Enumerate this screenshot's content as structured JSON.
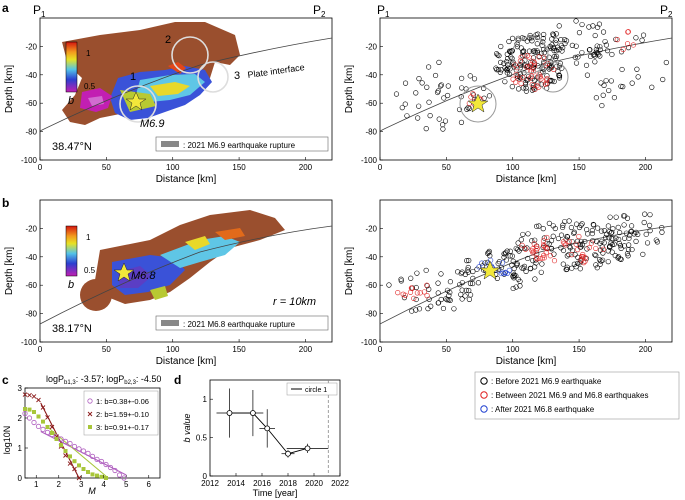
{
  "figure": {
    "panel_a_label": "a",
    "panel_b_label": "b",
    "panel_c_label": "c",
    "panel_d_label": "d",
    "p1": "P",
    "p1_sub": "1",
    "p2": "P",
    "p2_sub": "2"
  },
  "panel_a": {
    "latitude": "38.47°N",
    "colorbar_label": "b",
    "colorbar_ticks": [
      "1",
      "0.5"
    ],
    "circle_labels": [
      "1",
      "2",
      "3"
    ],
    "plate_interface": "Plate interface",
    "magnitude_label": "M6.9",
    "legend": ": 2021 M6.9 earthquake rupture"
  },
  "panel_b": {
    "latitude": "38.17°N",
    "colorbar_label": "b",
    "colorbar_ticks": [
      "1",
      "0.5"
    ],
    "magnitude_label": "M6.8",
    "radius_label": "r = 10km",
    "legend": ": 2021 M6.8 earthquake rupture"
  },
  "map_axes": {
    "xlabel": "Distance [km]",
    "ylabel": "Depth [km]",
    "xticks": [
      "0",
      "50",
      "100",
      "150",
      "200"
    ],
    "yticks": [
      "-20",
      "-40",
      "-60",
      "-80",
      "-100"
    ]
  },
  "seismicity_legend": [
    {
      "label": ": Before 2021 M6.9 earthquake",
      "color": "#000000"
    },
    {
      "label": ": Between 2021 M6.9 and M6.8 earthquakes",
      "color": "#e02020"
    },
    {
      "label": ": After 2021 M6.8 earthquake",
      "color": "#2040d0"
    }
  ],
  "chart_data": [
    {
      "type": "scatter",
      "title": "logP_b1,3: -3.57; logP_b2,3: -4.50",
      "title_parts": [
        "logP",
        "b1,3",
        ": -3.57; logP",
        "b2,3",
        ": -4.50"
      ],
      "xlabel": "M",
      "ylabel": "log10N",
      "xlim": [
        0.5,
        6.5
      ],
      "ylim": [
        0,
        3
      ],
      "xticks": [
        "1",
        "2",
        "3",
        "4",
        "5",
        "6"
      ],
      "yticks": [
        "0",
        "1",
        "2",
        "3"
      ],
      "series": [
        {
          "name": "1: b=0.38+-0.06",
          "color": "#b060c0",
          "marker": "circle",
          "x": [
            0.5,
            0.7,
            0.9,
            1.1,
            1.3,
            1.5,
            1.7,
            1.9,
            2.1,
            2.3,
            2.5,
            2.7,
            2.9,
            3.1,
            3.3,
            3.5,
            3.7,
            3.9,
            4.1,
            4.3,
            4.5,
            4.7,
            4.9
          ],
          "y": [
            2.15,
            2.0,
            1.85,
            1.72,
            1.62,
            1.52,
            1.45,
            1.38,
            1.3,
            1.22,
            1.15,
            1.05,
            0.97,
            0.9,
            0.82,
            0.72,
            0.62,
            0.55,
            0.45,
            0.35,
            0.25,
            0.1,
            0.0
          ]
        },
        {
          "name": "2: b=1.59+-0.10",
          "color": "#8b1a1a",
          "marker": "cross",
          "x": [
            0.5,
            0.7,
            0.9,
            1.1,
            1.3,
            1.5,
            1.7,
            1.9,
            2.1,
            2.3,
            2.5,
            2.7,
            2.9
          ],
          "y": [
            2.78,
            2.76,
            2.72,
            2.6,
            2.35,
            2.02,
            1.7,
            1.38,
            1.05,
            0.75,
            0.48,
            0.3,
            0.0
          ]
        },
        {
          "name": "3: b=0.91+-0.17",
          "color": "#a8c63a",
          "marker": "square",
          "x": [
            0.5,
            0.7,
            0.9,
            1.1,
            1.3,
            1.5,
            1.7,
            1.9,
            2.1,
            2.3,
            2.5,
            2.7,
            2.9,
            3.1,
            3.3,
            3.5,
            3.7,
            3.9,
            4.1
          ],
          "y": [
            2.3,
            2.28,
            2.2,
            2.05,
            1.88,
            1.7,
            1.5,
            1.3,
            1.1,
            0.9,
            0.72,
            0.56,
            0.42,
            0.3,
            0.2,
            0.12,
            0.08,
            0.04,
            0.0
          ]
        }
      ],
      "fit_lines": [
        {
          "series": "1: b=0.38+-0.06",
          "x": [
            1.2,
            5.0
          ],
          "y": [
            1.55,
            0.1
          ]
        },
        {
          "series": "2: b=1.59+-0.10",
          "x": [
            1.2,
            2.9
          ],
          "y": [
            2.5,
            0.0
          ]
        },
        {
          "series": "3: b=0.91+-0.17",
          "x": [
            1.5,
            4.2
          ],
          "y": [
            1.7,
            0.0
          ]
        }
      ]
    },
    {
      "type": "line",
      "title": "",
      "xlabel": "Time [year]",
      "ylabel": "b value",
      "xlim": [
        2012,
        2022
      ],
      "ylim": [
        0,
        1.25
      ],
      "xticks": [
        "2012",
        "2014",
        "2016",
        "2018",
        "2020",
        "2022"
      ],
      "yticks": [
        "0",
        "0.5",
        "1"
      ],
      "legend": "circle 1",
      "dashed_x": 2021.1,
      "series": [
        {
          "name": "circle 1",
          "x": [
            2013.5,
            2015.3,
            2016.4,
            2018.0,
            2019.5
          ],
          "y": [
            0.82,
            0.82,
            0.62,
            0.29,
            0.36
          ],
          "x_err": [
            1.0,
            0.8,
            0.6,
            0.5,
            1.6
          ],
          "y_err": [
            0.32,
            0.3,
            0.25,
            0.05,
            0.06
          ]
        }
      ]
    }
  ]
}
